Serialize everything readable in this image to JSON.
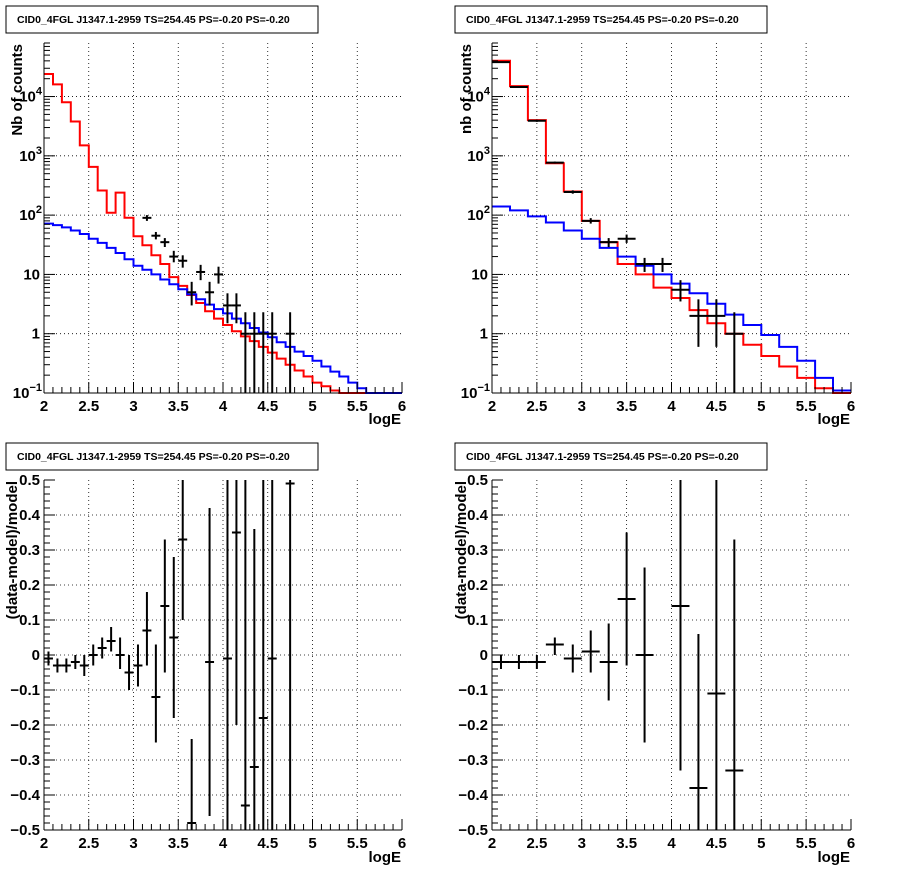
{
  "panels": [
    {
      "title": "CID0_4FGL J1347.1-2959 TS=254.45 PS=-0.20 PS=-0.20",
      "chart_data": {
        "type": "line",
        "scale_y": "log",
        "xlabel": "logE",
        "ylabel": "Nb of counts",
        "xlim": [
          2,
          6
        ],
        "ylim": [
          0.1,
          80000
        ],
        "x_ticks": [
          "2",
          "2.5",
          "3",
          "3.5",
          "4",
          "4.5",
          "5",
          "5.5",
          "6"
        ],
        "y_ticks": [
          {
            "v": 0.1,
            "m": "10",
            "e": "−1"
          },
          {
            "v": 1,
            "m": "1",
            "e": ""
          },
          {
            "v": 10,
            "m": "10",
            "e": ""
          },
          {
            "v": 100,
            "m": "10",
            "e": "2"
          },
          {
            "v": 1000,
            "m": "10",
            "e": "3"
          },
          {
            "v": 10000,
            "m": "10",
            "e": "4"
          }
        ],
        "grid": true,
        "bin_edges": [
          2.0,
          2.1,
          2.2,
          2.3,
          2.4,
          2.5,
          2.6,
          2.7,
          2.8,
          2.9,
          3.0,
          3.1,
          3.2,
          3.3,
          3.4,
          3.5,
          3.6,
          3.7,
          3.8,
          3.9,
          4.0,
          4.1,
          4.2,
          4.3,
          4.4,
          4.5,
          4.6,
          4.7,
          4.8,
          4.9,
          5.0,
          5.1,
          5.2,
          5.3,
          5.4,
          5.5,
          5.6,
          5.7,
          5.8,
          5.9,
          6.0
        ],
        "series": [
          {
            "color": "#ff0000",
            "style": "step",
            "values": [
              24000,
              16000,
              8000,
              3800,
              1500,
              650,
              260,
              110,
              240,
              90,
              44,
              31,
              21,
              15,
              9,
              6.4,
              4.5,
              3.3,
              2.4,
              1.8,
              1.4,
              1.1,
              0.9,
              0.75,
              0.6,
              0.48,
              0.38,
              0.3,
              0.24,
              0.19,
              0.15,
              0.13,
              0.11,
              0.1,
              0.1,
              0.1,
              0.1,
              0.1,
              0.1,
              0.1
            ]
          },
          {
            "color": "#0000ff",
            "style": "step",
            "values": [
              72,
              68,
              62,
              55,
              48,
              40,
              34,
              28,
              23,
              18,
              14,
              12,
              10,
              8.2,
              6.8,
              5.6,
              4.6,
              3.8,
              3.1,
              2.6,
              2.2,
              1.8,
              1.5,
              1.25,
              1.05,
              0.87,
              0.72,
              0.6,
              0.5,
              0.42,
              0.35,
              0.28,
              0.23,
              0.19,
              0.15,
              0.12,
              0.1,
              0.1,
              0.1,
              0.1
            ]
          },
          {
            "color": "#000000",
            "style": "points",
            "points": [
              {
                "x": 3.15,
                "y": 90,
                "lo": 80,
                "hi": 100
              },
              {
                "x": 3.25,
                "y": 45,
                "lo": 39,
                "hi": 52
              },
              {
                "x": 3.35,
                "y": 35,
                "lo": 29,
                "hi": 41
              },
              {
                "x": 3.45,
                "y": 20,
                "lo": 16,
                "hi": 25
              },
              {
                "x": 3.55,
                "y": 17,
                "lo": 13,
                "hi": 21
              },
              {
                "x": 3.65,
                "y": 5,
                "lo": 3,
                "hi": 7.5
              },
              {
                "x": 3.75,
                "y": 11,
                "lo": 8,
                "hi": 14.5
              },
              {
                "x": 3.85,
                "y": 5,
                "lo": 3,
                "hi": 7.5
              },
              {
                "x": 3.95,
                "y": 10,
                "lo": 7,
                "hi": 13.5
              },
              {
                "x": 4.05,
                "y": 3,
                "lo": 1.5,
                "hi": 4.8
              },
              {
                "x": 4.15,
                "y": 3,
                "lo": 1.5,
                "hi": 4.8
              },
              {
                "x": 4.25,
                "y": 1,
                "lo": 0.1,
                "hi": 2.3
              },
              {
                "x": 4.35,
                "y": 1,
                "lo": 0.1,
                "hi": 2.3
              },
              {
                "x": 4.45,
                "y": 1,
                "lo": 0.1,
                "hi": 2.3
              },
              {
                "x": 4.55,
                "y": 1,
                "lo": 0.1,
                "hi": 2.3
              },
              {
                "x": 4.75,
                "y": 1,
                "lo": 0.1,
                "hi": 2.3
              }
            ]
          }
        ]
      }
    },
    {
      "title": "CID0_4FGL J1347.1-2959 TS=254.45 PS=-0.20 PS=-0.20",
      "chart_data": {
        "type": "line",
        "scale_y": "log",
        "xlabel": "logE",
        "ylabel": "nb of counts",
        "xlim": [
          2,
          6
        ],
        "ylim": [
          0.1,
          80000
        ],
        "x_ticks": [
          "2",
          "2.5",
          "3",
          "3.5",
          "4",
          "4.5",
          "5",
          "5.5",
          "6"
        ],
        "y_ticks": [
          {
            "v": 0.1,
            "m": "10",
            "e": "−1"
          },
          {
            "v": 1,
            "m": "1",
            "e": ""
          },
          {
            "v": 10,
            "m": "10",
            "e": ""
          },
          {
            "v": 100,
            "m": "10",
            "e": "2"
          },
          {
            "v": 1000,
            "m": "10",
            "e": "3"
          },
          {
            "v": 10000,
            "m": "10",
            "e": "4"
          }
        ],
        "grid": true,
        "bin_edges": [
          2.0,
          2.2,
          2.4,
          2.6,
          2.8,
          3.0,
          3.2,
          3.4,
          3.6,
          3.8,
          4.0,
          4.2,
          4.4,
          4.6,
          4.8,
          5.0,
          5.2,
          5.4,
          5.6,
          5.8,
          6.0
        ],
        "series": [
          {
            "color": "#ff0000",
            "style": "step",
            "values": [
              40000,
              15000,
              4000,
              750,
              250,
              80,
              35,
              15,
              10,
              6,
              4,
              2.5,
              1.5,
              1.0,
              0.65,
              0.42,
              0.28,
              0.18,
              0.12,
              0.1
            ]
          },
          {
            "color": "#0000ff",
            "style": "step",
            "values": [
              140,
              120,
              95,
              75,
              55,
              40,
              28,
              20,
              14,
              10,
              7,
              4.8,
              3.2,
              2.1,
              1.4,
              0.95,
              0.6,
              0.35,
              0.18,
              0.11
            ]
          },
          {
            "color": "#000000",
            "style": "points",
            "points": [
              {
                "x": 2.1,
                "y": 38000,
                "lo": 37000,
                "hi": 39000
              },
              {
                "x": 2.3,
                "y": 14500,
                "lo": 14000,
                "hi": 15000
              },
              {
                "x": 2.5,
                "y": 3900,
                "lo": 3750,
                "hi": 4050
              },
              {
                "x": 2.7,
                "y": 770,
                "lo": 740,
                "hi": 800
              },
              {
                "x": 2.9,
                "y": 245,
                "lo": 230,
                "hi": 262
              },
              {
                "x": 3.1,
                "y": 80,
                "lo": 72,
                "hi": 89
              },
              {
                "x": 3.3,
                "y": 35,
                "lo": 29,
                "hi": 41
              },
              {
                "x": 3.5,
                "y": 40,
                "lo": 34,
                "hi": 47
              },
              {
                "x": 3.7,
                "y": 15,
                "lo": 11,
                "hi": 19
              },
              {
                "x": 3.9,
                "y": 15,
                "lo": 11,
                "hi": 19
              },
              {
                "x": 4.1,
                "y": 5.5,
                "lo": 3.5,
                "hi": 8
              },
              {
                "x": 4.3,
                "y": 2,
                "lo": 0.6,
                "hi": 3.8
              },
              {
                "x": 4.5,
                "y": 2,
                "lo": 0.6,
                "hi": 3.8
              },
              {
                "x": 4.7,
                "y": 1,
                "lo": 0.1,
                "hi": 2.3
              }
            ]
          }
        ]
      }
    },
    {
      "title": "CID0_4FGL J1347.1-2959 TS=254.45 PS=-0.20 PS=-0.20",
      "chart_data": {
        "type": "scatter",
        "scale_y": "linear",
        "xlabel": "logE",
        "ylabel": "(data-model)/model",
        "xlim": [
          2,
          6
        ],
        "ylim": [
          -0.5,
          0.5
        ],
        "x_ticks": [
          "2",
          "2.5",
          "3",
          "3.5",
          "4",
          "4.5",
          "5",
          "5.5",
          "6"
        ],
        "y_ticks": [
          {
            "v": -0.5,
            "m": "−0.5",
            "e": ""
          },
          {
            "v": -0.4,
            "m": "−0.4",
            "e": ""
          },
          {
            "v": -0.3,
            "m": "−0.3",
            "e": ""
          },
          {
            "v": -0.2,
            "m": "−0.2",
            "e": ""
          },
          {
            "v": -0.1,
            "m": "−0.1",
            "e": ""
          },
          {
            "v": 0,
            "m": "0",
            "e": ""
          },
          {
            "v": 0.1,
            "m": "0.1",
            "e": ""
          },
          {
            "v": 0.2,
            "m": "0.2",
            "e": ""
          },
          {
            "v": 0.3,
            "m": "0.3",
            "e": ""
          },
          {
            "v": 0.4,
            "m": "0.4",
            "e": ""
          },
          {
            "v": 0.5,
            "m": "0.5",
            "e": ""
          }
        ],
        "grid": true,
        "half_width": 0.05,
        "series": [
          {
            "color": "#000000",
            "style": "points",
            "points": [
              {
                "x": 2.05,
                "y": -0.01,
                "lo": -0.03,
                "hi": 0.01
              },
              {
                "x": 2.15,
                "y": -0.03,
                "lo": -0.05,
                "hi": -0.01
              },
              {
                "x": 2.25,
                "y": -0.03,
                "lo": -0.05,
                "hi": -0.01
              },
              {
                "x": 2.35,
                "y": -0.02,
                "lo": -0.04,
                "hi": 0.0
              },
              {
                "x": 2.45,
                "y": -0.03,
                "lo": -0.06,
                "hi": 0.0
              },
              {
                "x": 2.55,
                "y": 0.0,
                "lo": -0.03,
                "hi": 0.03
              },
              {
                "x": 2.65,
                "y": 0.02,
                "lo": -0.01,
                "hi": 0.05
              },
              {
                "x": 2.75,
                "y": 0.04,
                "lo": 0.01,
                "hi": 0.08
              },
              {
                "x": 2.85,
                "y": 0.0,
                "lo": -0.04,
                "hi": 0.05
              },
              {
                "x": 2.95,
                "y": -0.05,
                "lo": -0.1,
                "hi": 0.0
              },
              {
                "x": 3.05,
                "y": -0.03,
                "lo": -0.09,
                "hi": 0.03
              },
              {
                "x": 3.15,
                "y": 0.07,
                "lo": -0.03,
                "hi": 0.18
              },
              {
                "x": 3.25,
                "y": -0.12,
                "lo": -0.25,
                "hi": 0.03
              },
              {
                "x": 3.35,
                "y": 0.14,
                "lo": -0.05,
                "hi": 0.33
              },
              {
                "x": 3.45,
                "y": 0.05,
                "lo": -0.18,
                "hi": 0.28
              },
              {
                "x": 3.55,
                "y": 0.33,
                "lo": 0.1,
                "hi": 0.5
              },
              {
                "x": 3.65,
                "y": -0.48,
                "lo": -0.5,
                "hi": -0.24
              },
              {
                "x": 3.85,
                "y": -0.02,
                "lo": -0.46,
                "hi": 0.42
              },
              {
                "x": 4.05,
                "y": -0.01,
                "lo": -0.5,
                "hi": 0.5
              },
              {
                "x": 4.15,
                "y": 0.35,
                "lo": -0.2,
                "hi": 0.5
              },
              {
                "x": 4.25,
                "y": -0.43,
                "lo": -0.5,
                "hi": 0.5
              },
              {
                "x": 4.35,
                "y": -0.32,
                "lo": -0.5,
                "hi": 0.36
              },
              {
                "x": 4.45,
                "y": -0.18,
                "lo": -0.5,
                "hi": 0.5
              },
              {
                "x": 4.55,
                "y": -0.01,
                "lo": -0.5,
                "hi": 0.5
              },
              {
                "x": 4.75,
                "y": 0.49,
                "lo": -0.5,
                "hi": 0.5
              }
            ]
          }
        ]
      }
    },
    {
      "title": "CID0_4FGL J1347.1-2959 TS=254.45 PS=-0.20 PS=-0.20",
      "chart_data": {
        "type": "scatter",
        "scale_y": "linear",
        "xlabel": "logE",
        "ylabel": "(data-model)/model",
        "xlim": [
          2,
          6
        ],
        "ylim": [
          -0.5,
          0.5
        ],
        "x_ticks": [
          "2",
          "2.5",
          "3",
          "3.5",
          "4",
          "4.5",
          "5",
          "5.5",
          "6"
        ],
        "y_ticks": [
          {
            "v": -0.5,
            "m": "−0.5",
            "e": ""
          },
          {
            "v": -0.4,
            "m": "−0.4",
            "e": ""
          },
          {
            "v": -0.3,
            "m": "−0.3",
            "e": ""
          },
          {
            "v": -0.2,
            "m": "−0.2",
            "e": ""
          },
          {
            "v": -0.1,
            "m": "−0.1",
            "e": ""
          },
          {
            "v": 0,
            "m": "0",
            "e": ""
          },
          {
            "v": 0.1,
            "m": "0.1",
            "e": ""
          },
          {
            "v": 0.2,
            "m": "0.2",
            "e": ""
          },
          {
            "v": 0.3,
            "m": "0.3",
            "e": ""
          },
          {
            "v": 0.4,
            "m": "0.4",
            "e": ""
          },
          {
            "v": 0.5,
            "m": "0.5",
            "e": ""
          }
        ],
        "grid": true,
        "half_width": 0.1,
        "series": [
          {
            "color": "#000000",
            "style": "points",
            "points": [
              {
                "x": 2.1,
                "y": -0.02,
                "lo": -0.04,
                "hi": 0.0
              },
              {
                "x": 2.3,
                "y": -0.02,
                "lo": -0.04,
                "hi": 0.0
              },
              {
                "x": 2.5,
                "y": -0.02,
                "lo": -0.04,
                "hi": 0.0
              },
              {
                "x": 2.7,
                "y": 0.03,
                "lo": 0.0,
                "hi": 0.05
              },
              {
                "x": 2.9,
                "y": -0.01,
                "lo": -0.05,
                "hi": 0.03
              },
              {
                "x": 3.1,
                "y": 0.01,
                "lo": -0.05,
                "hi": 0.07
              },
              {
                "x": 3.3,
                "y": -0.02,
                "lo": -0.13,
                "hi": 0.09
              },
              {
                "x": 3.5,
                "y": 0.16,
                "lo": -0.03,
                "hi": 0.35
              },
              {
                "x": 3.7,
                "y": 0.0,
                "lo": -0.25,
                "hi": 0.25
              },
              {
                "x": 4.1,
                "y": 0.14,
                "lo": -0.33,
                "hi": 0.5
              },
              {
                "x": 4.3,
                "y": -0.38,
                "lo": -0.5,
                "hi": 0.06
              },
              {
                "x": 4.5,
                "y": -0.11,
                "lo": -0.5,
                "hi": 0.5
              },
              {
                "x": 4.7,
                "y": -0.33,
                "lo": -0.5,
                "hi": 0.33
              }
            ]
          }
        ]
      }
    }
  ]
}
